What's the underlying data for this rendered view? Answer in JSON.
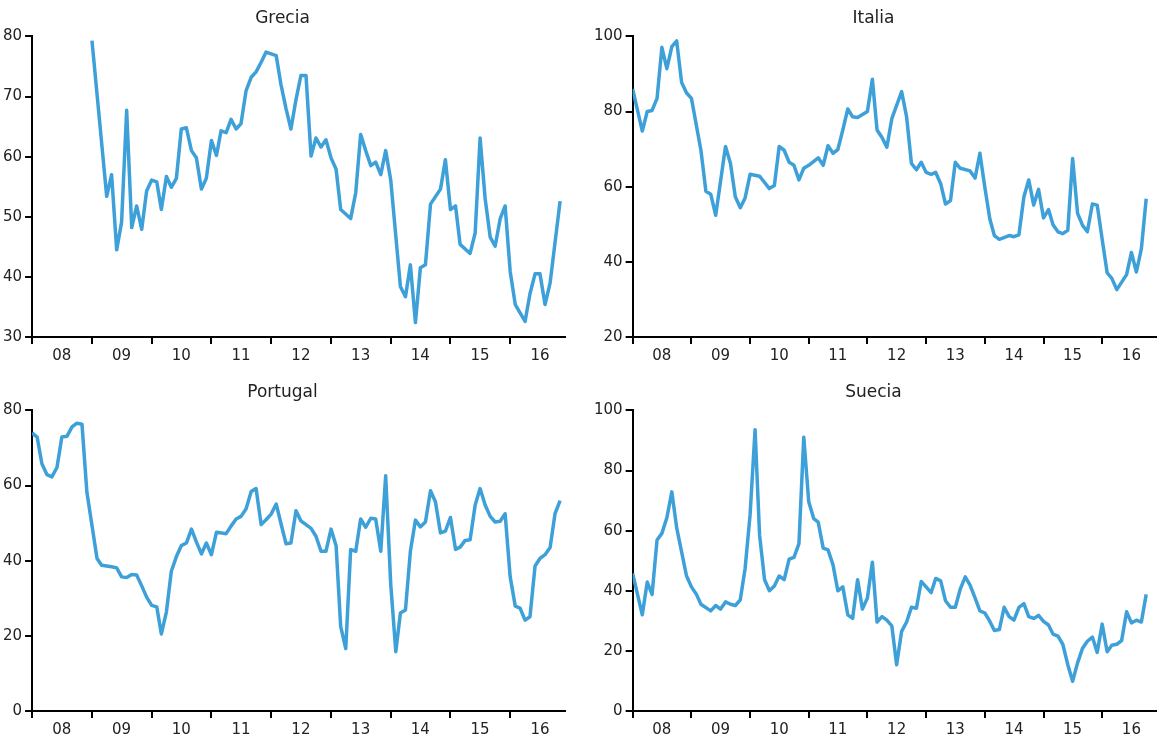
{
  "chart_data": [
    {
      "type": "line",
      "title": "Grecia",
      "color": "#3ea0d8",
      "marker": "none",
      "xlim": [
        "2008-01",
        "2016-12"
      ],
      "ylim": [
        30,
        80
      ],
      "yticks": [
        30,
        40,
        50,
        60,
        70,
        80
      ],
      "xticks": [
        {
          "value": "2008-01",
          "label": null
        },
        {
          "value": "2008-07",
          "label": "08"
        },
        {
          "value": "2009-01",
          "label": null
        },
        {
          "value": "2009-07",
          "label": "09"
        },
        {
          "value": "2010-01",
          "label": null
        },
        {
          "value": "2010-07",
          "label": "10"
        },
        {
          "value": "2011-01",
          "label": null
        },
        {
          "value": "2011-07",
          "label": "11"
        },
        {
          "value": "2012-01",
          "label": null
        },
        {
          "value": "2012-07",
          "label": "12"
        },
        {
          "value": "2013-01",
          "label": null
        },
        {
          "value": "2013-07",
          "label": "13"
        },
        {
          "value": "2014-01",
          "label": null
        },
        {
          "value": "2014-07",
          "label": "14"
        },
        {
          "value": "2015-01",
          "label": null
        },
        {
          "value": "2015-07",
          "label": "15"
        },
        {
          "value": "2016-01",
          "label": null
        },
        {
          "value": "2016-07",
          "label": "16"
        }
      ],
      "x": [
        "2009-01",
        "2009-04",
        "2009-05",
        "2009-06",
        "2009-07",
        "2009-08",
        "2009-09",
        "2009-10",
        "2009-11",
        "2009-12",
        "2010-01",
        "2010-02",
        "2010-03",
        "2010-04",
        "2010-05",
        "2010-06",
        "2010-07",
        "2010-08",
        "2010-09",
        "2010-10",
        "2010-11",
        "2010-12",
        "2011-01",
        "2011-02",
        "2011-03",
        "2011-04",
        "2011-05",
        "2011-06",
        "2011-07",
        "2011-08",
        "2011-09",
        "2011-10",
        "2011-11",
        "2011-12",
        "2012-02",
        "2012-03",
        "2012-04",
        "2012-05",
        "2012-06",
        "2012-07",
        "2012-08",
        "2012-09",
        "2012-10",
        "2012-11",
        "2012-12",
        "2013-01",
        "2013-02",
        "2013-03",
        "2013-05",
        "2013-06",
        "2013-07",
        "2013-08",
        "2013-09",
        "2013-10",
        "2013-11",
        "2013-12",
        "2014-01",
        "2014-03",
        "2014-04",
        "2014-05",
        "2014-06",
        "2014-07",
        "2014-08",
        "2014-09",
        "2014-11",
        "2014-12",
        "2015-01",
        "2015-02",
        "2015-03",
        "2015-05",
        "2015-06",
        "2015-07",
        "2015-08",
        "2015-09",
        "2015-10",
        "2015-11",
        "2015-12",
        "2016-01",
        "2016-02",
        "2016-04",
        "2016-05",
        "2016-06",
        "2016-07",
        "2016-08",
        "2016-09",
        "2016-11"
      ],
      "values": [
        79.3,
        53.4,
        57,
        44.5,
        49.1,
        67.7,
        48.2,
        51.8,
        47.9,
        54.3,
        56.1,
        55.8,
        51.2,
        56.7,
        54.9,
        56.4,
        64.6,
        64.8,
        61,
        59.8,
        54.6,
        56.4,
        62.7,
        60.2,
        64.3,
        64,
        66.2,
        64.6,
        65.5,
        71,
        73.2,
        74.1,
        75.7,
        77.4,
        76.8,
        72,
        68,
        64.6,
        69.5,
        73.5,
        73.5,
        60.1,
        63.1,
        61.6,
        62.8,
        59.8,
        57.9,
        51.2,
        49.7,
        54,
        63.7,
        61,
        58.5,
        59.1,
        57,
        61,
        56.1,
        38.4,
        36.7,
        42,
        32.4,
        41.5,
        42,
        52.1,
        54.6,
        59.5,
        51.2,
        51.8,
        45.4,
        43.9,
        47.3,
        63.1,
        53,
        46.6,
        45.1,
        49.7,
        51.8,
        40.9,
        35.4,
        32.6,
        37.2,
        40.5,
        40.5,
        35.4,
        39,
        52.6
      ]
    },
    {
      "type": "line",
      "title": "Italia",
      "color": "#3ea0d8",
      "marker": "none",
      "xlim": [
        "2008-01",
        "2016-12"
      ],
      "ylim": [
        20,
        100
      ],
      "yticks": [
        20,
        40,
        60,
        80,
        100
      ],
      "xticks": [
        {
          "value": "2008-01",
          "label": null
        },
        {
          "value": "2008-07",
          "label": "08"
        },
        {
          "value": "2009-01",
          "label": null
        },
        {
          "value": "2009-07",
          "label": "09"
        },
        {
          "value": "2010-01",
          "label": null
        },
        {
          "value": "2010-07",
          "label": "10"
        },
        {
          "value": "2011-01",
          "label": null
        },
        {
          "value": "2011-07",
          "label": "11"
        },
        {
          "value": "2012-01",
          "label": null
        },
        {
          "value": "2012-07",
          "label": "12"
        },
        {
          "value": "2013-01",
          "label": null
        },
        {
          "value": "2013-07",
          "label": "13"
        },
        {
          "value": "2014-01",
          "label": null
        },
        {
          "value": "2014-07",
          "label": "14"
        },
        {
          "value": "2015-01",
          "label": null
        },
        {
          "value": "2015-07",
          "label": "15"
        },
        {
          "value": "2016-01",
          "label": null
        },
        {
          "value": "2016-07",
          "label": "16"
        }
      ],
      "x": [
        "2008-01",
        "2008-03",
        "2008-04",
        "2008-05",
        "2008-06",
        "2008-07",
        "2008-08",
        "2008-09",
        "2008-10",
        "2008-11",
        "2008-12",
        "2009-01",
        "2009-03",
        "2009-04",
        "2009-05",
        "2009-06",
        "2009-08",
        "2009-09",
        "2009-10",
        "2009-11",
        "2009-12",
        "2010-01",
        "2010-03",
        "2010-05",
        "2010-06",
        "2010-07",
        "2010-08",
        "2010-09",
        "2010-10",
        "2010-11",
        "2010-12",
        "2011-01",
        "2011-03",
        "2011-04",
        "2011-05",
        "2011-06",
        "2011-07",
        "2011-08",
        "2011-09",
        "2011-10",
        "2011-11",
        "2012-01",
        "2012-02",
        "2012-03",
        "2012-04",
        "2012-05",
        "2012-06",
        "2012-08",
        "2012-09",
        "2012-10",
        "2012-11",
        "2012-12",
        "2013-01",
        "2013-02",
        "2013-03",
        "2013-04",
        "2013-05",
        "2013-06",
        "2013-07",
        "2013-08",
        "2013-10",
        "2013-11",
        "2013-12",
        "2014-01",
        "2014-02",
        "2014-03",
        "2014-04",
        "2014-06",
        "2014-07",
        "2014-08",
        "2014-09",
        "2014-10",
        "2014-11",
        "2014-12",
        "2015-01",
        "2015-02",
        "2015-03",
        "2015-04",
        "2015-05",
        "2015-06",
        "2015-07",
        "2015-08",
        "2015-09",
        "2015-10",
        "2015-11",
        "2015-12",
        "2016-01",
        "2016-02",
        "2016-03",
        "2016-04",
        "2016-06",
        "2016-07",
        "2016-08",
        "2016-09",
        "2016-10"
      ],
      "values": [
        86,
        74.8,
        80,
        80.3,
        83.5,
        97.1,
        91.4,
        97.3,
        98.8,
        87.7,
        85,
        83.5,
        69.7,
        58.8,
        58,
        52.4,
        70.7,
        66.2,
        57.3,
        54.4,
        57,
        63.3,
        62.8,
        59.5,
        60.3,
        70.7,
        69.7,
        66.5,
        65.7,
        61.8,
        64.9,
        65.7,
        67.7,
        65.7,
        70.9,
        68.9,
        69.9,
        75.1,
        80.7,
        78.6,
        78.4,
        80,
        88.6,
        75.1,
        73.1,
        70.5,
        78.1,
        85.3,
        78.6,
        66.2,
        64.5,
        66.5,
        63.8,
        63.3,
        63.8,
        60.8,
        55.4,
        56.3,
        66.5,
        64.9,
        64.2,
        62.3,
        68.9,
        59.8,
        51.4,
        47,
        46,
        47,
        46.7,
        47.2,
        57.3,
        61.8,
        55.1,
        59.3,
        51.7,
        53.9,
        49.9,
        48,
        47.5,
        48.4,
        67.5,
        52.9,
        49.7,
        48,
        55.4,
        55.1,
        46,
        37.1,
        35.6,
        32.6,
        36.6,
        42.5,
        37.3,
        43.5,
        56.8
      ]
    },
    {
      "type": "line",
      "title": "Portugal",
      "color": "#3ea0d8",
      "marker": "none",
      "xlim": [
        "2008-01",
        "2016-12"
      ],
      "ylim": [
        0,
        80
      ],
      "yticks": [
        0,
        20,
        40,
        60,
        80
      ],
      "xticks": [
        {
          "value": "2008-01",
          "label": null
        },
        {
          "value": "2008-07",
          "label": "08"
        },
        {
          "value": "2009-01",
          "label": null
        },
        {
          "value": "2009-07",
          "label": "09"
        },
        {
          "value": "2010-01",
          "label": null
        },
        {
          "value": "2010-07",
          "label": "10"
        },
        {
          "value": "2011-01",
          "label": null
        },
        {
          "value": "2011-07",
          "label": "11"
        },
        {
          "value": "2012-01",
          "label": null
        },
        {
          "value": "2012-07",
          "label": "12"
        },
        {
          "value": "2013-01",
          "label": null
        },
        {
          "value": "2013-07",
          "label": "13"
        },
        {
          "value": "2014-01",
          "label": null
        },
        {
          "value": "2014-07",
          "label": "14"
        },
        {
          "value": "2015-01",
          "label": null
        },
        {
          "value": "2015-07",
          "label": "15"
        },
        {
          "value": "2016-01",
          "label": null
        },
        {
          "value": "2016-07",
          "label": "16"
        }
      ],
      "x": [
        "2008-01",
        "2008-02",
        "2008-03",
        "2008-04",
        "2008-05",
        "2008-06",
        "2008-07",
        "2008-08",
        "2008-09",
        "2008-10",
        "2008-11",
        "2008-12",
        "2009-02",
        "2009-03",
        "2009-05",
        "2009-06",
        "2009-07",
        "2009-08",
        "2009-09",
        "2009-10",
        "2009-11",
        "2009-12",
        "2010-01",
        "2010-02",
        "2010-03",
        "2010-04",
        "2010-05",
        "2010-06",
        "2010-07",
        "2010-08",
        "2010-09",
        "2010-10",
        "2010-11",
        "2010-12",
        "2011-01",
        "2011-02",
        "2011-04",
        "2011-05",
        "2011-06",
        "2011-07",
        "2011-08",
        "2011-09",
        "2011-10",
        "2011-11",
        "2011-12",
        "2012-01",
        "2012-02",
        "2012-03",
        "2012-04",
        "2012-05",
        "2012-06",
        "2012-07",
        "2012-09",
        "2012-10",
        "2012-11",
        "2012-12",
        "2013-01",
        "2013-02",
        "2013-03",
        "2013-04",
        "2013-05",
        "2013-06",
        "2013-07",
        "2013-08",
        "2013-09",
        "2013-10",
        "2013-11",
        "2013-12",
        "2014-01",
        "2014-02",
        "2014-03",
        "2014-04",
        "2014-05",
        "2014-06",
        "2014-07",
        "2014-08",
        "2014-09",
        "2014-10",
        "2014-11",
        "2014-12",
        "2015-01",
        "2015-02",
        "2015-03",
        "2015-04",
        "2015-05",
        "2015-06",
        "2015-07",
        "2015-08",
        "2015-09",
        "2015-10",
        "2015-11",
        "2015-12",
        "2016-01",
        "2016-02",
        "2016-03",
        "2016-04",
        "2016-05",
        "2016-06",
        "2016-07",
        "2016-08",
        "2016-09",
        "2016-10",
        "2016-11"
      ],
      "values": [
        74,
        72.9,
        65.8,
        62.9,
        62.3,
        64.8,
        72.9,
        73.1,
        75.6,
        76.6,
        76.3,
        58.2,
        40.6,
        38.8,
        38.4,
        38.1,
        35.7,
        35.5,
        36.3,
        36.2,
        33.3,
        30.3,
        28.1,
        27.7,
        20.5,
        26.4,
        37.2,
        41.1,
        44,
        44.7,
        48.4,
        45,
        41.8,
        44.7,
        41.6,
        47.6,
        47.2,
        49.2,
        51.1,
        51.8,
        53.8,
        58.4,
        59.2,
        49.6,
        50.9,
        52.4,
        55.1,
        49.9,
        44.5,
        44.7,
        53.3,
        50.6,
        48.6,
        46.5,
        42.5,
        42.5,
        48.4,
        44,
        22.5,
        16.6,
        43,
        42.5,
        51.1,
        48.9,
        51.3,
        51.1,
        42.5,
        62.6,
        33.7,
        15.8,
        26.1,
        26.9,
        42.5,
        50.8,
        49,
        50.3,
        58.6,
        55.7,
        47.4,
        47.9,
        51.5,
        43,
        43.6,
        45.4,
        45.6,
        54.8,
        59.2,
        54.8,
        51.8,
        50.3,
        50.5,
        52.5,
        35.7,
        27.9,
        27.4,
        24.2,
        25.1,
        38.6,
        40.6,
        41.6,
        43.5,
        52.5,
        56
      ]
    },
    {
      "type": "line",
      "title": "Suecia",
      "color": "#3ea0d8",
      "marker": "none",
      "xlim": [
        "2008-01",
        "2016-12"
      ],
      "ylim": [
        0,
        100
      ],
      "yticks": [
        0,
        20,
        40,
        60,
        80,
        100
      ],
      "xticks": [
        {
          "value": "2008-01",
          "label": null
        },
        {
          "value": "2008-07",
          "label": "08"
        },
        {
          "value": "2009-01",
          "label": null
        },
        {
          "value": "2009-07",
          "label": "09"
        },
        {
          "value": "2010-01",
          "label": null
        },
        {
          "value": "2010-07",
          "label": "10"
        },
        {
          "value": "2011-01",
          "label": null
        },
        {
          "value": "2011-07",
          "label": "11"
        },
        {
          "value": "2012-01",
          "label": null
        },
        {
          "value": "2012-07",
          "label": "12"
        },
        {
          "value": "2013-01",
          "label": null
        },
        {
          "value": "2013-07",
          "label": "13"
        },
        {
          "value": "2014-01",
          "label": null
        },
        {
          "value": "2014-07",
          "label": "14"
        },
        {
          "value": "2015-01",
          "label": null
        },
        {
          "value": "2015-07",
          "label": "15"
        },
        {
          "value": "2016-01",
          "label": null
        },
        {
          "value": "2016-07",
          "label": "16"
        }
      ],
      "x": [
        "2008-01",
        "2008-03",
        "2008-04",
        "2008-05",
        "2008-06",
        "2008-07",
        "2008-08",
        "2008-09",
        "2008-10",
        "2008-12",
        "2009-01",
        "2009-02",
        "2009-03",
        "2009-05",
        "2009-06",
        "2009-07",
        "2009-08",
        "2009-09",
        "2009-10",
        "2009-11",
        "2009-12",
        "2010-01",
        "2010-02",
        "2010-03",
        "2010-04",
        "2010-05",
        "2010-06",
        "2010-07",
        "2010-08",
        "2010-09",
        "2010-10",
        "2010-11",
        "2010-12",
        "2011-01",
        "2011-02",
        "2011-03",
        "2011-04",
        "2011-05",
        "2011-06",
        "2011-07",
        "2011-08",
        "2011-09",
        "2011-10",
        "2011-11",
        "2011-12",
        "2012-01",
        "2012-02",
        "2012-03",
        "2012-04",
        "2012-05",
        "2012-06",
        "2012-07",
        "2012-08",
        "2012-09",
        "2012-10",
        "2012-11",
        "2012-12",
        "2013-02",
        "2013-03",
        "2013-04",
        "2013-05",
        "2013-06",
        "2013-07",
        "2013-08",
        "2013-09",
        "2013-10",
        "2013-11",
        "2013-12",
        "2014-01",
        "2014-02",
        "2014-03",
        "2014-04",
        "2014-05",
        "2014-06",
        "2014-07",
        "2014-08",
        "2014-09",
        "2014-10",
        "2014-11",
        "2014-12",
        "2015-01",
        "2015-02",
        "2015-03",
        "2015-04",
        "2015-05",
        "2015-06",
        "2015-07",
        "2015-08",
        "2015-09",
        "2015-10",
        "2015-11",
        "2015-12",
        "2016-01",
        "2016-02",
        "2016-03",
        "2016-04",
        "2016-05",
        "2016-06",
        "2016-07",
        "2016-08",
        "2016-09",
        "2016-10"
      ],
      "values": [
        45.8,
        32,
        42.9,
        38.8,
        56.9,
        59.1,
        64.3,
        72.9,
        61,
        45,
        41.3,
        38.8,
        35.5,
        33.3,
        35.1,
        33.9,
        36.3,
        35.5,
        35.1,
        37,
        47.4,
        65.3,
        93.6,
        58.5,
        43.7,
        40,
        41.6,
        44.9,
        43.7,
        50.5,
        51.1,
        55.7,
        91.1,
        69.6,
        64,
        62.8,
        54.2,
        53.6,
        48.6,
        40,
        41.3,
        32,
        30.8,
        43.7,
        33.9,
        37.6,
        49.5,
        29.6,
        31.4,
        30.2,
        28.3,
        15.4,
        26.5,
        29.6,
        34.5,
        34.2,
        43.1,
        39.4,
        44.1,
        43.3,
        36.7,
        34.5,
        34.5,
        40.6,
        44.6,
        41.9,
        37.6,
        33.3,
        32.6,
        29.8,
        26.8,
        27.1,
        34.5,
        31.4,
        30.2,
        34.5,
        35.7,
        31.4,
        30.8,
        31.8,
        29.8,
        28.6,
        25.6,
        24.9,
        22.2,
        15.4,
        9.9,
        16,
        20.9,
        23.2,
        24.6,
        19.5,
        28.9,
        19.7,
        21.9,
        22.2,
        23.4,
        33,
        29.3,
        30.2,
        29.6,
        38.8
      ]
    }
  ]
}
